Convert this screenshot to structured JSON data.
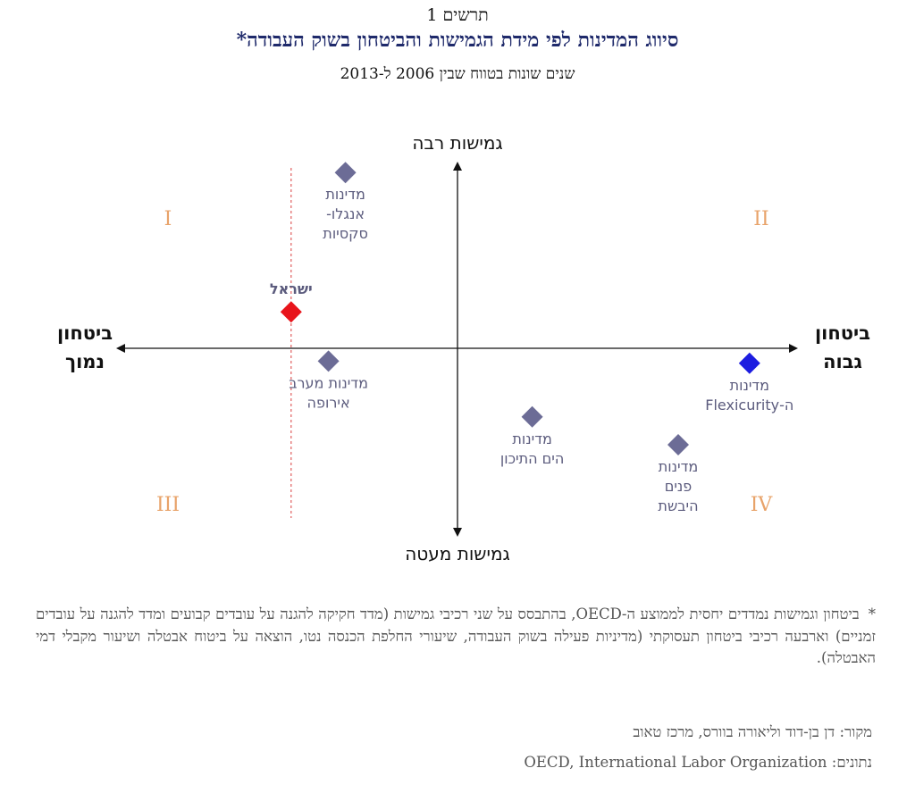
{
  "header": {
    "figure_number": "תרשים 1",
    "title": "סיווג המדינות לפי מידת הגמישות והביטחון בשוק העבודה*",
    "subtitle": "שנים שונות בטווח שבין 2006 ל-2013"
  },
  "chart_data": {
    "type": "scatter",
    "axes": {
      "top_label": "גמישות רבה",
      "bottom_label": "גמישות מעטה",
      "left_label": [
        "ביטחון",
        "נמוך"
      ],
      "right_label": [
        "ביטחון",
        "גבוה"
      ],
      "xlim": [
        -1,
        1
      ],
      "ylim": [
        -1,
        1
      ],
      "grid": false
    },
    "quadrants": {
      "I": "I",
      "II": "II",
      "III": "III",
      "IV": "IV"
    },
    "reference_line": {
      "x": -0.49,
      "style": "dashed",
      "color": "#e36b6b"
    },
    "points": [
      {
        "id": "anglo",
        "label": [
          "מדינות",
          "אנגלו-",
          "סקסיות"
        ],
        "x": -0.33,
        "y": 0.82,
        "color": "#6c6c96"
      },
      {
        "id": "israel",
        "label": [
          "ישראל"
        ],
        "x": -0.49,
        "y": 0.17,
        "color": "#e8141b",
        "bold": true
      },
      {
        "id": "west_europe",
        "label": [
          "מדינות מערב",
          "אירופה"
        ],
        "x": -0.38,
        "y": -0.06,
        "color": "#6c6c96"
      },
      {
        "id": "mediterranean",
        "label": [
          "מדינות",
          "הים התיכון"
        ],
        "x": 0.22,
        "y": -0.32,
        "color": "#6c6c96"
      },
      {
        "id": "landlocked",
        "label": [
          "מדינות",
          "פנים",
          "היבשת"
        ],
        "x": 0.65,
        "y": -0.45,
        "color": "#6c6c96"
      },
      {
        "id": "flexicurity",
        "label": [
          "מדינות",
          "ה-Flexicurity"
        ],
        "x": 0.86,
        "y": -0.07,
        "color": "#1d1de0"
      }
    ]
  },
  "notes": {
    "star": "*",
    "text": "ביטחון וגמישות נמדדים יחסית לממוצע ה-OECD, בהתבסס על שני רכיבי גמישות (מדד חקיקה להגנה על עובדים קבועים ומדד להגנה על עובדים זמניים) וארבעה רכיבי ביטחון תעסוקתי (מדיניות פעילה בשוק העבודה, שיעורי החלפת הכנסה נטו, הוצאה על ביטוח אבטלה ושיעור מקבלי דמי האבטלה).",
    "source": "מקור: דן בן-דוד וליאורה בוורס, מרכז טאוב",
    "data_source": "נתונים: OECD, International Labor Organization"
  }
}
